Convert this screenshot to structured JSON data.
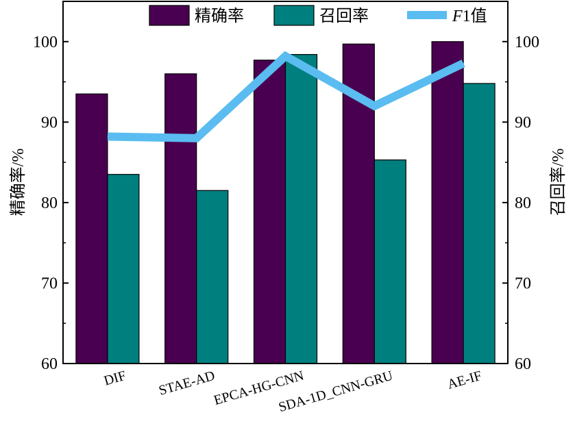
{
  "chart_data": {
    "type": "bar",
    "categories": [
      "DIF",
      "STAE-AD",
      "EPCA-HG-CNN",
      "SDA-1D_CNN-GRU",
      "AE-IF"
    ],
    "series": [
      {
        "name": "精确率",
        "kind": "bar",
        "color": "#4a0050",
        "values": [
          93.5,
          96.0,
          97.7,
          99.7,
          100.0
        ]
      },
      {
        "name": "召回率",
        "kind": "bar",
        "color": "#007f7f",
        "values": [
          83.5,
          81.5,
          98.4,
          85.3,
          94.8
        ]
      },
      {
        "name": "F1值",
        "name_italic": "F",
        "name_rest": "1值",
        "kind": "line",
        "color": "#5abcf0",
        "values": [
          88.2,
          88.0,
          98.2,
          92.0,
          97.3
        ]
      }
    ],
    "ylabel": "精确率/%",
    "y2label": "召回率/%",
    "ylim": [
      60,
      105
    ],
    "y2lim": [
      60,
      105
    ],
    "yticks": [
      60,
      70,
      80,
      90,
      100
    ],
    "ytick_labels": [
      "60",
      "70",
      "80",
      "90",
      "100"
    ],
    "legend": "top",
    "grid": false
  }
}
